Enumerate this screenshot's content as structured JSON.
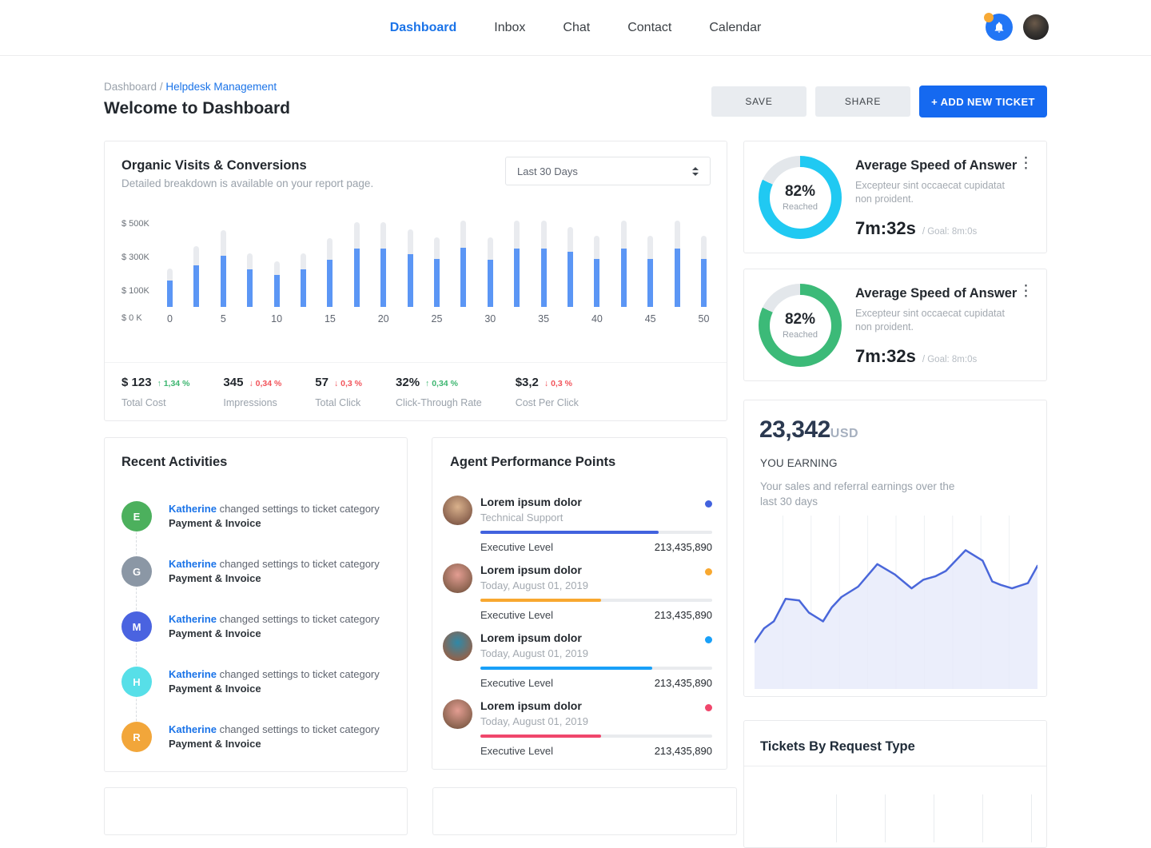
{
  "nav": {
    "items": [
      {
        "label": "Dashboard",
        "active": true
      },
      {
        "label": "Inbox",
        "active": false
      },
      {
        "label": "Chat",
        "active": false
      },
      {
        "label": "Contact",
        "active": false
      },
      {
        "label": "Calendar",
        "active": false
      }
    ]
  },
  "header": {
    "breadcrumb": {
      "root": "Dashboard",
      "separator": "/",
      "current": "Helpdesk Management"
    },
    "title": "Welcome to Dashboard",
    "save_label": "SAVE",
    "share_label": "SHARE",
    "add_label": "+ ADD NEW TICKET"
  },
  "organic": {
    "title": "Organic Visits & Conversions",
    "subtitle": "Detailed breakdown is available on your report page.",
    "range_selected": "Last 30 Days",
    "stats": [
      {
        "value": "$ 123",
        "dir": "up",
        "arrow": "↑",
        "trend": "1,34 %",
        "label": "Total Cost"
      },
      {
        "value": "345",
        "dir": "down",
        "arrow": "↓",
        "trend": "0,34 %",
        "label": "Impressions"
      },
      {
        "value": "57",
        "dir": "down",
        "arrow": "↓",
        "trend": "0,3 %",
        "label": "Total Click"
      },
      {
        "value": "32%",
        "dir": "up",
        "arrow": "↑",
        "trend": "0,34 %",
        "label": "Click-Through Rate"
      },
      {
        "value": "$3,2",
        "dir": "down",
        "arrow": "↓",
        "trend": "0,3 %",
        "label": "Cost Per Click"
      }
    ]
  },
  "chart_data": [
    {
      "type": "bar",
      "title": "Organic Visits & Conversions",
      "x": [
        0,
        2.5,
        5,
        7.5,
        10,
        12.5,
        15,
        17.5,
        20,
        22.5,
        25,
        27.5,
        30,
        32.5,
        35,
        37.5,
        40,
        42.5,
        45,
        47.5,
        50
      ],
      "series": [
        {
          "name": "total-visits",
          "color": "#e9ebef",
          "values": [
            230,
            365,
            460,
            320,
            275,
            320,
            415,
            510,
            510,
            465,
            420,
            520,
            420,
            520,
            520,
            480,
            430,
            520,
            430,
            520,
            430
          ]
        },
        {
          "name": "conversions",
          "color": "#5b96f5",
          "values": [
            160,
            250,
            310,
            225,
            190,
            225,
            285,
            350,
            350,
            315,
            290,
            355,
            285,
            350,
            350,
            330,
            290,
            350,
            290,
            350,
            290
          ]
        }
      ],
      "yticks": [
        "$ 0 K",
        "$ 100K",
        "$ 300K",
        "$ 500K"
      ],
      "xticks": [
        0,
        5,
        10,
        15,
        20,
        25,
        30,
        35,
        40,
        45,
        50
      ],
      "ylim": [
        0,
        520
      ],
      "unit": "$K",
      "legend": "none",
      "grid": false
    },
    {
      "type": "area",
      "title": "YOU EARNING — last 30 days",
      "x": [
        0,
        3.4,
        6.8,
        11,
        15.8,
        19.2,
        24.2,
        27.3,
        30.7,
        36.6,
        43.4,
        49.6,
        55.5,
        59.7,
        64,
        67.6,
        74.6,
        80.6,
        84,
        87,
        91,
        96.6,
        100
      ],
      "values": [
        27,
        35,
        39,
        52,
        51,
        44,
        39,
        47,
        53,
        59,
        72,
        66,
        58,
        63,
        65,
        68,
        80,
        74,
        62,
        60,
        58,
        61,
        71
      ],
      "ylim": [
        0,
        100
      ],
      "line_color": "#4a67da",
      "fill_color": "#e6eafa",
      "grid": "vertical-only",
      "legend": "none"
    }
  ],
  "recent": {
    "title": "Recent Activities",
    "items": [
      {
        "initial": "E",
        "color": "#4cb05d",
        "user": "Katherine",
        "action": "changed settings to ticket category",
        "target": "Payment & Invoice"
      },
      {
        "initial": "G",
        "color": "#8b97a5",
        "user": "Katherine",
        "action": "changed settings to ticket category",
        "target": "Payment & Invoice"
      },
      {
        "initial": "M",
        "color": "#4a63e0",
        "user": "Katherine",
        "action": "changed settings to ticket category",
        "target": "Payment & Invoice"
      },
      {
        "initial": "H",
        "color": "#57dfe8",
        "user": "Katherine",
        "action": "changed settings to ticket category",
        "target": "Payment & Invoice"
      },
      {
        "initial": "R",
        "color": "#f2a63a",
        "user": "Katherine",
        "action": "changed settings to ticket category",
        "target": "Payment & Invoice"
      }
    ]
  },
  "agents": {
    "title": "Agent Performance Points",
    "rows": [
      {
        "name": "Lorem ipsum dolor",
        "sub": "Technical Support",
        "color": "#4262de",
        "progress": 77,
        "level_label": "Executive Level",
        "points": "213,435,890",
        "avatar_bg": "#d9b18c"
      },
      {
        "name": "Lorem ipsum dolor",
        "sub": "Today, August 01, 2019",
        "color": "#f8a830",
        "progress": 52,
        "level_label": "Executive Level",
        "points": "213,435,890",
        "avatar_bg": "#e39d92"
      },
      {
        "name": "Lorem ipsum dolor",
        "sub": "Today, August 01, 2019",
        "color": "#19a0f8",
        "progress": 74,
        "level_label": "Executive Level",
        "points": "213,435,890",
        "avatar_bg": "#2f89a8"
      },
      {
        "name": "Lorem ipsum dolor",
        "sub": "Today, August 01, 2019",
        "color": "#f0476c",
        "progress": 52,
        "level_label": "Executive Level",
        "points": "213,435,890",
        "avatar_bg": "#e39d92"
      }
    ]
  },
  "speed": {
    "cards": [
      {
        "percent": "82%",
        "percent_value": 82,
        "caption": "Reached",
        "title": "Average Speed of Answer",
        "desc": "Excepteur sint occaecat cupidatat non proident.",
        "time": "7m:32s",
        "goal": "/ Goal: 8m:0s",
        "color": "#20c9f2"
      },
      {
        "percent": "82%",
        "percent_value": 82,
        "caption": "Reached",
        "title": "Average Speed of Answer",
        "desc": "Excepteur sint occaecat cupidatat non proident.",
        "time": "7m:32s",
        "goal": "/ Goal: 8m:0s",
        "color": "#3cba78"
      }
    ]
  },
  "earning": {
    "amount": "23,342",
    "currency": "USD",
    "label": "YOU EARNING",
    "desc": "Your sales and referral earnings over the last 30 days"
  },
  "tickets": {
    "title": "Tickets By Request Type"
  }
}
